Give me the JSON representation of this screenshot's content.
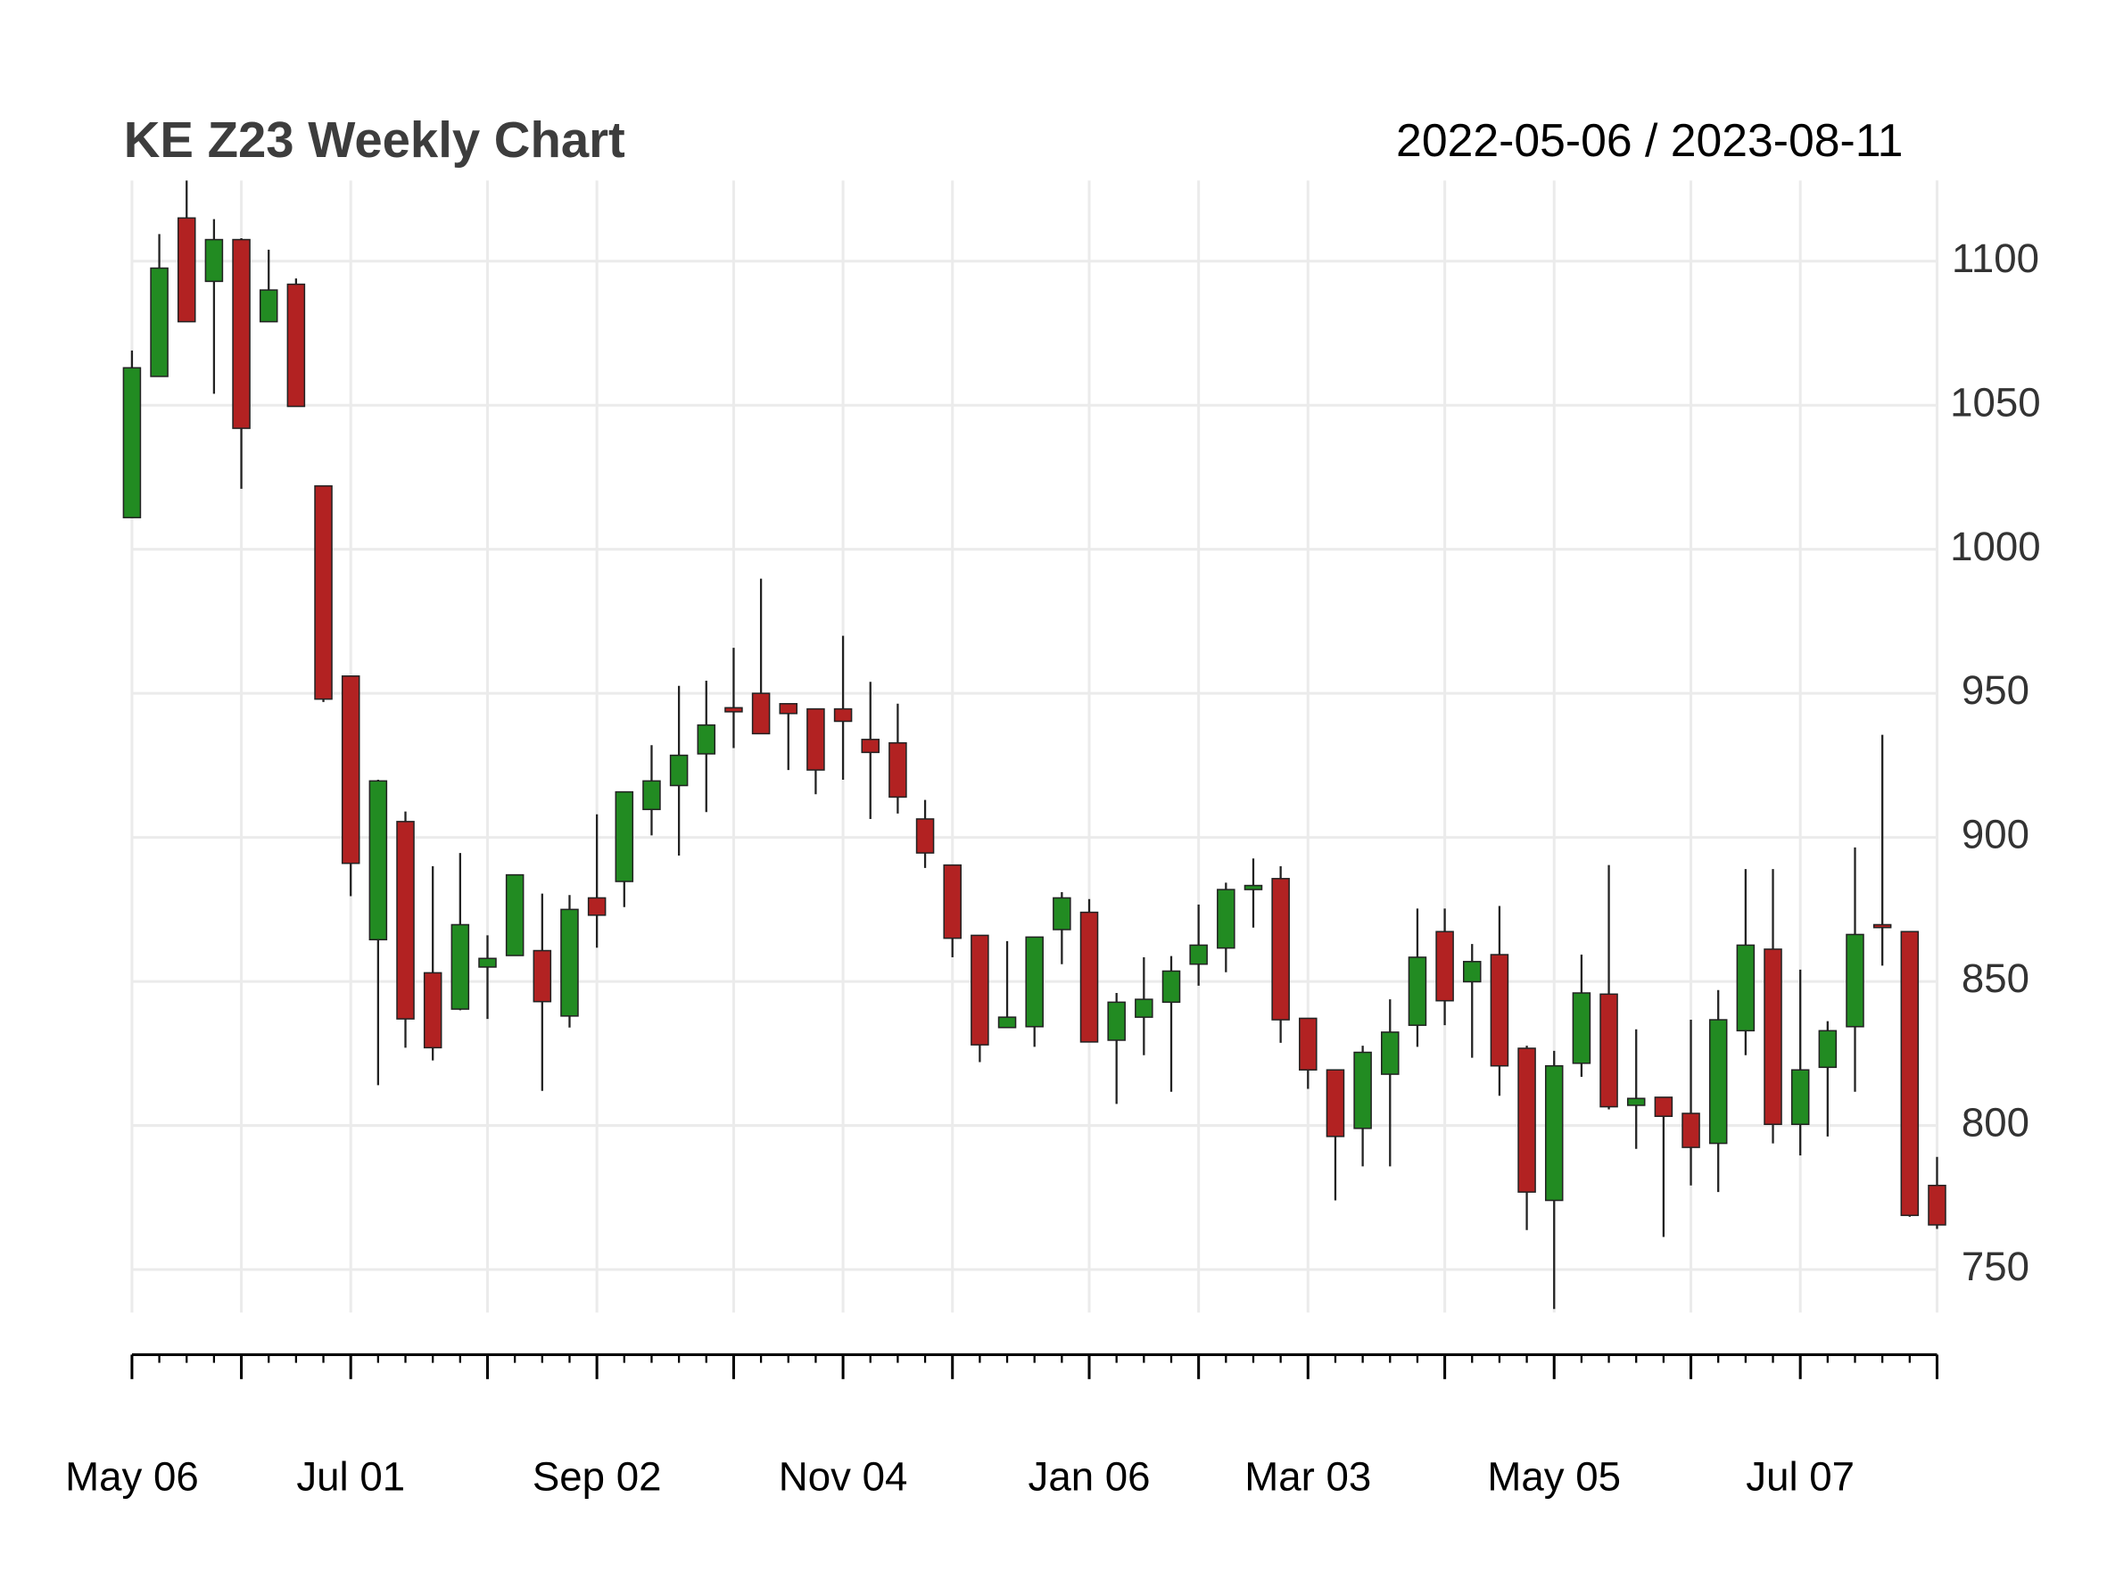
{
  "chart_data": {
    "type": "candlestick",
    "title": "KE Z23 Weekly Chart",
    "subtitle": "2022-05-06 / 2023-08-11",
    "categories": [
      "May 06",
      null,
      null,
      null,
      null,
      null,
      null,
      null,
      "Jul 01",
      null,
      null,
      null,
      null,
      null,
      null,
      null,
      null,
      "Sep 02",
      null,
      null,
      null,
      null,
      null,
      null,
      null,
      null,
      "Nov 04",
      null,
      null,
      null,
      null,
      null,
      null,
      null,
      null,
      "Jan 06",
      null,
      null,
      null,
      null,
      null,
      null,
      null,
      "Mar 03",
      null,
      null,
      null,
      null,
      null,
      null,
      null,
      null,
      "May 05",
      null,
      null,
      null,
      null,
      null,
      null,
      null,
      null,
      "Jul 07",
      null,
      null,
      null,
      null,
      null
    ],
    "open": [
      1011,
      1060,
      1115,
      1093,
      1107.5,
      1079,
      1092,
      1022,
      956,
      864.5,
      905.5,
      853,
      840.4,
      855,
      859,
      860.7,
      838,
      879,
      884.7,
      909.7,
      918,
      929,
      945,
      950,
      946.4,
      944.6,
      944.6,
      934,
      932.8,
      906.4,
      890.4,
      866,
      834,
      834.3,
      868,
      874,
      829.6,
      837.6,
      842.8,
      856,
      861.6,
      881.9,
      885.7,
      837.2,
      819.3,
      799,
      817.8,
      834.8,
      867.3,
      849.9,
      859.3,
      826.8,
      774,
      821.6,
      845.6,
      807,
      809.8,
      804.2,
      793.8,
      832.9,
      861.2,
      800.4,
      820.2,
      834.3,
      869.7,
      867.3,
      779.2
    ],
    "high": [
      1069,
      1109.4,
      1128,
      1114.6,
      1108,
      1104,
      1094,
      1022,
      956,
      920,
      909,
      890,
      894.6,
      866,
      887,
      880.5,
      880,
      908,
      916,
      932,
      952.6,
      954.4,
      965.8,
      989.8,
      946.4,
      944.6,
      970,
      954,
      946.4,
      913,
      890.4,
      866,
      864,
      865.4,
      881,
      878.6,
      846,
      858.4,
      858.8,
      876.7,
      884.3,
      892.7,
      890,
      837.2,
      819.3,
      827.7,
      843.8,
      875.3,
      875.3,
      863,
      876.2,
      827.7,
      825.9,
      859.3,
      890.4,
      833.4,
      809.8,
      836.7,
      847,
      889,
      889,
      854.1,
      836.2,
      896.5,
      935.6,
      867.3,
      789.1
    ],
    "low": [
      1011,
      1060,
      1079,
      1054,
      1021,
      1079,
      1049.6,
      947,
      879.6,
      814,
      827,
      822.6,
      840,
      837,
      859,
      812,
      834,
      861.7,
      875.8,
      900.7,
      893.7,
      908.8,
      931,
      936,
      923.4,
      915,
      920,
      906.4,
      908.3,
      889.4,
      858.4,
      822,
      834,
      827.3,
      856,
      829,
      807.5,
      824.4,
      811.7,
      848.5,
      853.2,
      868.7,
      828.7,
      812.7,
      774,
      785.8,
      785.8,
      827.3,
      834.8,
      823.5,
      810.3,
      763.7,
      736.3,
      816.9,
      805.6,
      791.9,
      761.3,
      779.2,
      776.9,
      824.4,
      793.8,
      789.6,
      796.2,
      811.7,
      855.5,
      768.3,
      764.1
    ],
    "close": [
      1063,
      1097.6,
      1079,
      1107.5,
      1042,
      1090,
      1049.6,
      948,
      891,
      919.6,
      837,
      827,
      869.7,
      858,
      887,
      843,
      875,
      873,
      915.8,
      919.6,
      928.5,
      939,
      943.6,
      936,
      943,
      923.4,
      940.3,
      929.5,
      914,
      894.6,
      865,
      828,
      837.6,
      865.4,
      879,
      829,
      842.8,
      843.8,
      853.6,
      862.6,
      881.9,
      883.3,
      836.7,
      819.3,
      796.2,
      825.4,
      832.4,
      858.4,
      843.3,
      856.9,
      820.7,
      776.9,
      820.7,
      846,
      806.5,
      809.4,
      803.2,
      792.4,
      836.7,
      862.6,
      800.4,
      819.3,
      832.9,
      866.3,
      868.7,
      768.8,
      765.5
    ],
    "up_color": "#228b22",
    "down_color": "#b22222",
    "ylim": [
      736,
      1128
    ],
    "yticks": [
      750,
      800,
      850,
      900,
      950,
      1000,
      1050,
      1100
    ],
    "grid": true
  }
}
